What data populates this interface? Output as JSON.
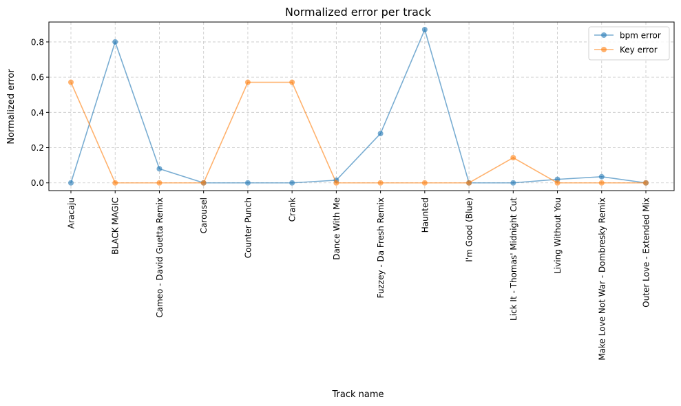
{
  "chart_data": {
    "type": "line",
    "title": "Normalized error per track",
    "xlabel": "Track name",
    "ylabel": "Normalized error",
    "categories": [
      "Aracaju",
      "BLACK MAGIC",
      "Cameo - David Guetta Remix",
      "Carousel",
      "Counter Punch",
      "Crank",
      "Dance With Me",
      "Fuzzey - Da Fresh Remix",
      "Haunted",
      "I'm Good (Blue)",
      "Lick It - Thomas' Midnight Cut",
      "Living Without You",
      "Make Love Not War - Dombresky Remix",
      "Outer Love - Extended Mix"
    ],
    "series": [
      {
        "name": "bpm error",
        "color": "#1f77b4",
        "values": [
          0.0,
          0.8,
          0.08,
          0.0,
          0.0,
          0.0,
          0.015,
          0.28,
          0.87,
          0.0,
          0.0,
          0.02,
          0.035,
          0.0
        ]
      },
      {
        "name": "Key error",
        "color": "#ff7f0e",
        "values": [
          0.571,
          0.0,
          0.0,
          0.0,
          0.571,
          0.571,
          0.0,
          0.0,
          0.0,
          0.0,
          0.143,
          0.0,
          0.0,
          0.0
        ]
      }
    ],
    "ylim": [
      -0.044,
      0.913
    ],
    "yticks": [
      0.0,
      0.2,
      0.4,
      0.6,
      0.8
    ],
    "ytick_labels": [
      "0.0",
      "0.2",
      "0.4",
      "0.6",
      "0.8"
    ],
    "grid": true,
    "legend_position": "top-right"
  }
}
